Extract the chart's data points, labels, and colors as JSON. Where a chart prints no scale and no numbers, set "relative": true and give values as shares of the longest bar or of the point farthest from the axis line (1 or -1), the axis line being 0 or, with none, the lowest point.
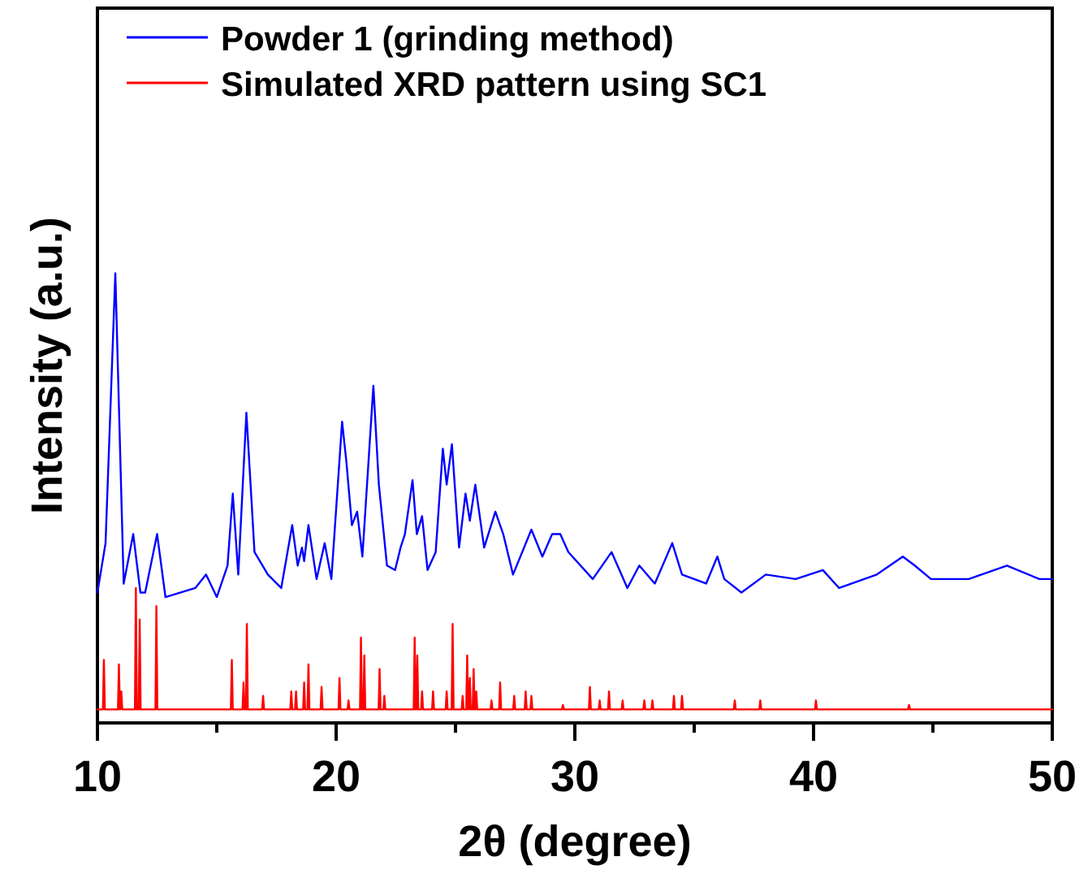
{
  "chart_data": {
    "type": "line",
    "relative": true,
    "xlabel": "2θ (degree)",
    "ylabel": "Intensity (a.u.)",
    "xlim": [
      10,
      50
    ],
    "xticks": [
      10,
      {
        "value": 15,
        "label": null
      },
      20,
      {
        "value": 25,
        "label": null
      },
      30,
      {
        "value": 35,
        "label": null
      },
      40,
      {
        "value": 45,
        "label": null
      },
      50
    ],
    "legend": "top left",
    "line_style": "solid",
    "marker": "none",
    "series": [
      {
        "name": "Powder 1 (grinding method)",
        "color": "#0000ff",
        "x": [
          10.0,
          10.34,
          10.75,
          11.1,
          11.5,
          11.8,
          12.0,
          12.5,
          12.85,
          14.1,
          14.55,
          15.0,
          15.45,
          15.67,
          15.9,
          16.24,
          16.58,
          17.14,
          17.7,
          18.16,
          18.39,
          18.57,
          18.66,
          18.84,
          19.18,
          19.52,
          19.8,
          20.25,
          20.43,
          20.66,
          20.88,
          21.1,
          21.56,
          21.79,
          22.13,
          22.47,
          22.7,
          22.88,
          23.2,
          23.38,
          23.6,
          23.83,
          24.17,
          24.47,
          24.63,
          24.85,
          25.15,
          25.42,
          25.6,
          25.83,
          26.2,
          26.67,
          27.0,
          27.41,
          28.18,
          28.64,
          29.05,
          29.39,
          29.73,
          30.75,
          31.54,
          32.2,
          32.7,
          33.35,
          34.08,
          34.49,
          35.5,
          35.97,
          36.26,
          36.98,
          38.0,
          39.25,
          40.39,
          41.07,
          42.65,
          43.74,
          44.24,
          44.92,
          46.5,
          48.1,
          49.46,
          50.0
        ],
        "values": [
          0.29,
          0.4,
          1.0,
          0.31,
          0.42,
          0.29,
          0.29,
          0.42,
          0.28,
          0.3,
          0.33,
          0.28,
          0.35,
          0.51,
          0.33,
          0.69,
          0.38,
          0.33,
          0.3,
          0.44,
          0.35,
          0.39,
          0.36,
          0.44,
          0.32,
          0.4,
          0.32,
          0.67,
          0.58,
          0.44,
          0.47,
          0.37,
          0.75,
          0.53,
          0.35,
          0.34,
          0.39,
          0.42,
          0.54,
          0.42,
          0.46,
          0.34,
          0.38,
          0.61,
          0.53,
          0.62,
          0.39,
          0.51,
          0.45,
          0.53,
          0.39,
          0.47,
          0.42,
          0.33,
          0.43,
          0.37,
          0.42,
          0.42,
          0.38,
          0.32,
          0.38,
          0.3,
          0.35,
          0.31,
          0.4,
          0.33,
          0.31,
          0.37,
          0.32,
          0.29,
          0.33,
          0.32,
          0.34,
          0.3,
          0.33,
          0.37,
          0.35,
          0.32,
          0.32,
          0.35,
          0.32,
          0.32
        ]
      },
      {
        "name": "Simulated XRD pattern using SC1",
        "color": "#ff0000",
        "x": [
          10.0,
          10.23,
          10.27,
          10.31,
          10.86,
          10.9,
          10.94,
          10.96,
          11.0,
          11.04,
          11.57,
          11.61,
          11.65,
          11.73,
          11.77,
          11.81,
          12.43,
          12.47,
          12.51,
          15.59,
          15.63,
          15.67,
          16.08,
          16.12,
          16.16,
          16.22,
          16.26,
          16.3,
          16.9,
          16.94,
          16.98,
          18.08,
          18.12,
          18.16,
          18.28,
          18.32,
          18.36,
          18.62,
          18.66,
          18.7,
          18.8,
          18.84,
          18.88,
          19.35,
          19.39,
          19.43,
          20.1,
          20.14,
          20.18,
          20.48,
          20.52,
          20.56,
          21.0,
          21.04,
          21.08,
          21.14,
          21.18,
          21.22,
          21.78,
          21.82,
          21.86,
          21.98,
          22.02,
          22.06,
          23.25,
          23.29,
          23.33,
          23.36,
          23.4,
          23.44,
          23.56,
          23.6,
          23.64,
          24.02,
          24.06,
          24.1,
          24.59,
          24.63,
          24.67,
          24.84,
          24.88,
          24.92,
          25.26,
          25.3,
          25.34,
          25.45,
          25.49,
          25.53,
          25.56,
          25.6,
          25.64,
          25.72,
          25.76,
          25.8,
          25.83,
          25.87,
          25.91,
          26.47,
          26.51,
          26.55,
          26.83,
          26.87,
          26.91,
          27.42,
          27.46,
          27.5,
          27.9,
          27.94,
          27.98,
          28.14,
          28.18,
          28.22,
          29.46,
          29.5,
          29.54,
          30.59,
          30.63,
          30.67,
          31.0,
          31.04,
          31.08,
          31.39,
          31.43,
          31.47,
          31.96,
          32.0,
          32.04,
          32.87,
          32.91,
          32.95,
          33.21,
          33.25,
          33.29,
          34.11,
          34.15,
          34.19,
          34.45,
          34.49,
          34.53,
          36.66,
          36.7,
          36.74,
          37.73,
          37.77,
          37.81,
          40.06,
          40.1,
          40.14,
          43.96,
          44.0,
          44.04,
          50.0
        ],
        "values": [
          0.03,
          0.03,
          0.14,
          0.03,
          0.03,
          0.13,
          0.03,
          0.03,
          0.07,
          0.03,
          0.03,
          0.3,
          0.03,
          0.03,
          0.23,
          0.03,
          0.03,
          0.26,
          0.03,
          0.03,
          0.14,
          0.03,
          0.03,
          0.09,
          0.03,
          0.03,
          0.22,
          0.03,
          0.03,
          0.06,
          0.03,
          0.03,
          0.07,
          0.03,
          0.03,
          0.07,
          0.03,
          0.03,
          0.09,
          0.03,
          0.03,
          0.13,
          0.03,
          0.03,
          0.08,
          0.03,
          0.03,
          0.1,
          0.03,
          0.03,
          0.05,
          0.03,
          0.03,
          0.19,
          0.03,
          0.03,
          0.15,
          0.03,
          0.03,
          0.12,
          0.03,
          0.03,
          0.06,
          0.03,
          0.03,
          0.19,
          0.03,
          0.03,
          0.15,
          0.03,
          0.03,
          0.07,
          0.03,
          0.03,
          0.07,
          0.03,
          0.03,
          0.07,
          0.03,
          0.03,
          0.22,
          0.03,
          0.03,
          0.06,
          0.03,
          0.03,
          0.15,
          0.03,
          0.03,
          0.1,
          0.03,
          0.03,
          0.12,
          0.03,
          0.03,
          0.07,
          0.03,
          0.03,
          0.05,
          0.03,
          0.03,
          0.09,
          0.03,
          0.03,
          0.06,
          0.03,
          0.03,
          0.07,
          0.03,
          0.03,
          0.06,
          0.03,
          0.03,
          0.04,
          0.03,
          0.03,
          0.08,
          0.03,
          0.03,
          0.05,
          0.03,
          0.03,
          0.07,
          0.03,
          0.03,
          0.05,
          0.03,
          0.03,
          0.05,
          0.03,
          0.03,
          0.05,
          0.03,
          0.03,
          0.06,
          0.03,
          0.03,
          0.06,
          0.03,
          0.03,
          0.05,
          0.03,
          0.03,
          0.05,
          0.03,
          0.03,
          0.05,
          0.03,
          0.03,
          0.04,
          0.03,
          0.03
        ]
      }
    ]
  }
}
